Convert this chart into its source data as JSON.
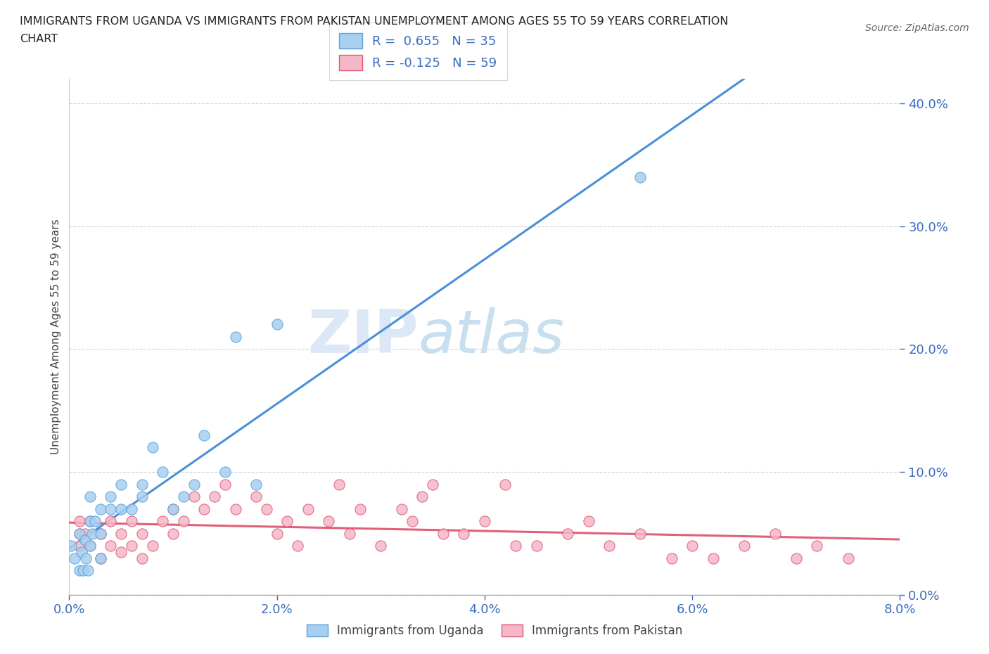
{
  "title": "IMMIGRANTS FROM UGANDA VS IMMIGRANTS FROM PAKISTAN UNEMPLOYMENT AMONG AGES 55 TO 59 YEARS CORRELATION\nCHART",
  "source": "Source: ZipAtlas.com",
  "ylabel_label": "Unemployment Among Ages 55 to 59 years",
  "xlim": [
    0.0,
    0.08
  ],
  "ylim": [
    0.0,
    0.42
  ],
  "xticks": [
    0.0,
    0.02,
    0.04,
    0.06,
    0.08
  ],
  "yticks": [
    0.0,
    0.1,
    0.2,
    0.3,
    0.4
  ],
  "uganda_color": "#a8cff0",
  "pakistan_color": "#f5b8c8",
  "uganda_edge_color": "#5ba3d9",
  "pakistan_edge_color": "#e05878",
  "uganda_line_color": "#4a90d9",
  "pakistan_line_color": "#e0607a",
  "R_uganda": 0.655,
  "N_uganda": 35,
  "R_pakistan": -0.125,
  "N_pakistan": 59,
  "uganda_scatter_x": [
    0.0002,
    0.0005,
    0.001,
    0.001,
    0.0012,
    0.0013,
    0.0015,
    0.0016,
    0.0018,
    0.002,
    0.002,
    0.002,
    0.0022,
    0.0025,
    0.003,
    0.003,
    0.003,
    0.004,
    0.004,
    0.005,
    0.005,
    0.006,
    0.007,
    0.007,
    0.008,
    0.009,
    0.01,
    0.011,
    0.012,
    0.013,
    0.015,
    0.016,
    0.018,
    0.02,
    0.055
  ],
  "uganda_scatter_y": [
    0.04,
    0.03,
    0.02,
    0.05,
    0.035,
    0.02,
    0.045,
    0.03,
    0.02,
    0.04,
    0.06,
    0.08,
    0.05,
    0.06,
    0.05,
    0.07,
    0.03,
    0.07,
    0.08,
    0.09,
    0.07,
    0.07,
    0.08,
    0.09,
    0.12,
    0.1,
    0.07,
    0.08,
    0.09,
    0.13,
    0.1,
    0.21,
    0.09,
    0.22,
    0.34
  ],
  "pakistan_scatter_x": [
    0.001,
    0.001,
    0.001,
    0.0015,
    0.002,
    0.002,
    0.003,
    0.003,
    0.004,
    0.004,
    0.005,
    0.005,
    0.006,
    0.006,
    0.007,
    0.007,
    0.008,
    0.009,
    0.01,
    0.01,
    0.011,
    0.012,
    0.013,
    0.014,
    0.015,
    0.016,
    0.018,
    0.019,
    0.02,
    0.021,
    0.022,
    0.023,
    0.025,
    0.026,
    0.027,
    0.028,
    0.03,
    0.032,
    0.033,
    0.034,
    0.035,
    0.036,
    0.038,
    0.04,
    0.042,
    0.043,
    0.045,
    0.048,
    0.05,
    0.052,
    0.055,
    0.058,
    0.06,
    0.062,
    0.065,
    0.068,
    0.07,
    0.072,
    0.075
  ],
  "pakistan_scatter_y": [
    0.04,
    0.05,
    0.06,
    0.05,
    0.04,
    0.06,
    0.03,
    0.05,
    0.04,
    0.06,
    0.035,
    0.05,
    0.04,
    0.06,
    0.05,
    0.03,
    0.04,
    0.06,
    0.07,
    0.05,
    0.06,
    0.08,
    0.07,
    0.08,
    0.09,
    0.07,
    0.08,
    0.07,
    0.05,
    0.06,
    0.04,
    0.07,
    0.06,
    0.09,
    0.05,
    0.07,
    0.04,
    0.07,
    0.06,
    0.08,
    0.09,
    0.05,
    0.05,
    0.06,
    0.09,
    0.04,
    0.04,
    0.05,
    0.06,
    0.04,
    0.05,
    0.03,
    0.04,
    0.03,
    0.04,
    0.05,
    0.03,
    0.04,
    0.03
  ],
  "watermark_zip": "ZIP",
  "watermark_atlas": "atlas",
  "background_color": "#ffffff",
  "grid_color": "#d0d0d0",
  "legend_uganda": "Immigrants from Uganda",
  "legend_pakistan": "Immigrants from Pakistan"
}
